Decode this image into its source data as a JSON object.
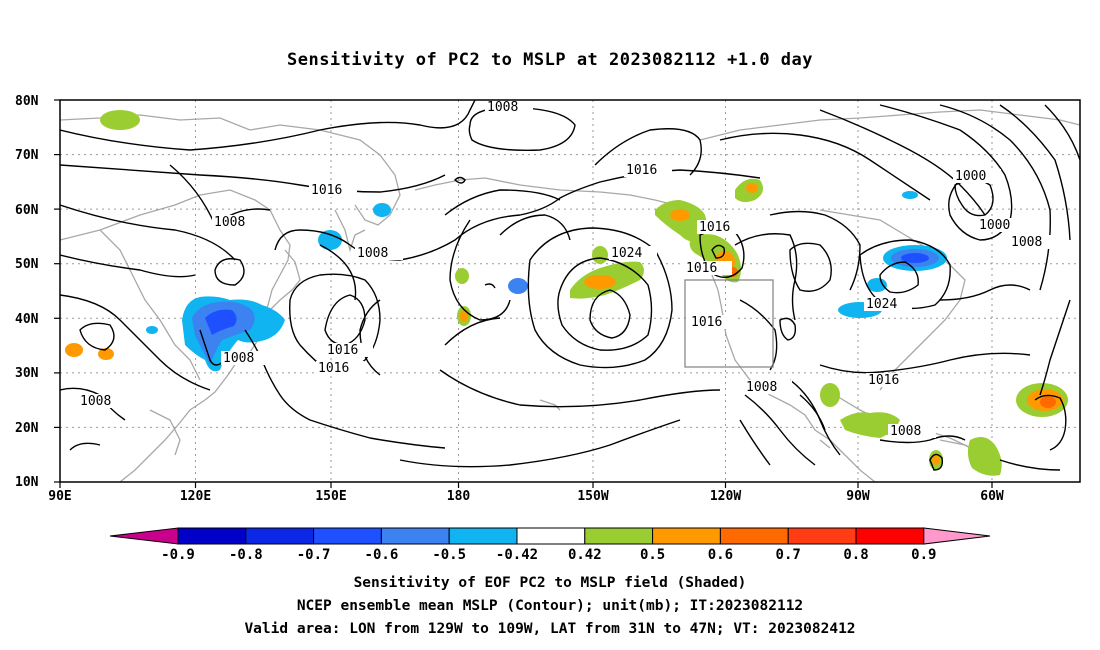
{
  "title": "Sensitivity of PC2 to MSLP at 2023082112 +1.0 day",
  "map": {
    "lat_ticks": [
      "80N",
      "70N",
      "60N",
      "50N",
      "40N",
      "30N",
      "20N",
      "10N"
    ],
    "lon_ticks": [
      "90E",
      "120E",
      "150E",
      "180",
      "150W",
      "120W",
      "90W",
      "60W"
    ],
    "contour_labels": [
      "1008",
      "1016",
      "1008",
      "1016",
      "1008",
      "1024",
      "1016",
      "1016",
      "1016",
      "1000",
      "1000",
      "1008",
      "1024",
      "1016",
      "1016",
      "1008",
      "1016",
      "1008",
      "1008",
      "1016",
      "1008"
    ]
  },
  "colorbar": {
    "labels": [
      "-0.9",
      "-0.8",
      "-0.7",
      "-0.6",
      "-0.5",
      "-0.42",
      "0.42",
      "0.5",
      "0.6",
      "0.7",
      "0.8",
      "0.9"
    ],
    "colors": [
      "#c8008c",
      "#0000c8",
      "#0a28e6",
      "#1e50ff",
      "#3c82f0",
      "#0fb4f0",
      "#ffffff",
      "#9acd32",
      "#ff9900",
      "#ff6a00",
      "#ff3c14",
      "#ff0000",
      "#ff99cc"
    ]
  },
  "footer": {
    "line1": "Sensitivity of EOF PC2 to MSLP field (Shaded)",
    "line2": "NCEP ensemble mean MSLP (Contour); unit(mb); IT:2023082112",
    "line3": "Valid area: LON from 129W to 109W, LAT from 31N to 47N; VT: 2023082412"
  }
}
